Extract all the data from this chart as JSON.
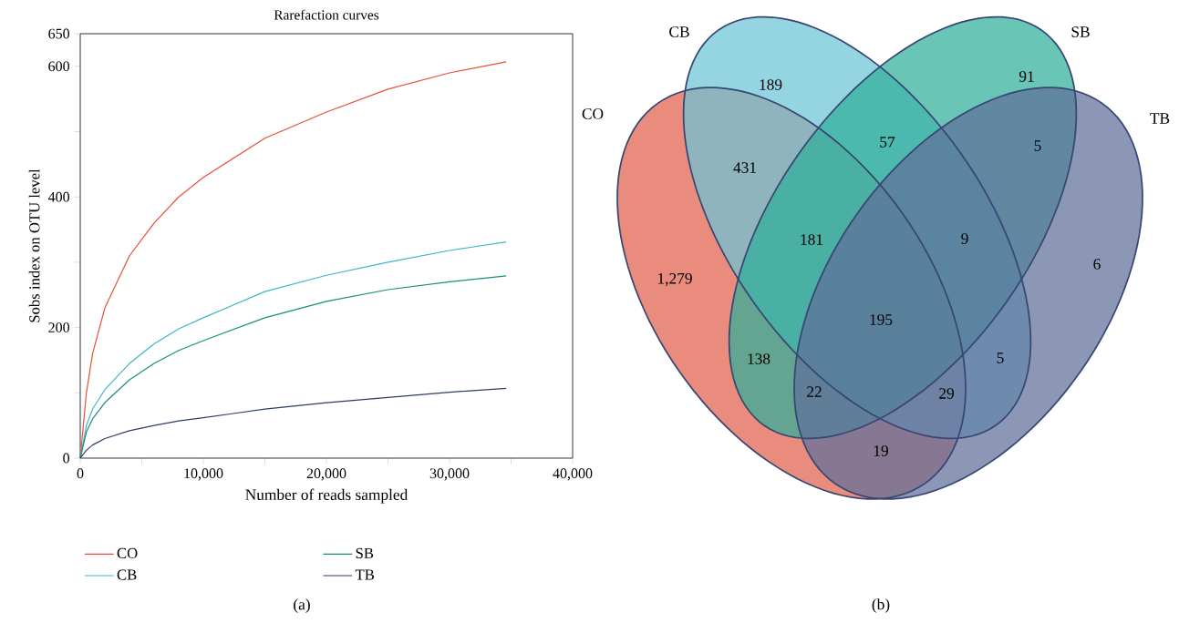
{
  "chart_data": [
    {
      "type": "line",
      "title": "Rarefaction curves",
      "xlabel": "Number of reads sampled",
      "ylabel": "Sobs index on OTU level",
      "x": [
        0,
        500,
        1000,
        2000,
        4000,
        6000,
        8000,
        10000,
        15000,
        20000,
        25000,
        30000,
        34600
      ],
      "series": [
        {
          "name": "CO",
          "color": "#e8503a",
          "values": [
            0,
            100,
            160,
            230,
            310,
            360,
            400,
            430,
            490,
            530,
            565,
            590,
            607
          ]
        },
        {
          "name": "CB",
          "color": "#3fb5c9",
          "values": [
            0,
            50,
            75,
            105,
            145,
            175,
            198,
            215,
            255,
            280,
            300,
            318,
            331
          ]
        },
        {
          "name": "SB",
          "color": "#15917a",
          "values": [
            0,
            40,
            60,
            85,
            120,
            145,
            165,
            180,
            215,
            240,
            258,
            270,
            279
          ]
        },
        {
          "name": "TB",
          "color": "#2f3d6b",
          "values": [
            0,
            12,
            20,
            30,
            42,
            50,
            57,
            62,
            75,
            85,
            93,
            101,
            107
          ]
        }
      ],
      "xlim": [
        0,
        40000
      ],
      "ylim": [
        0,
        650
      ],
      "xticks": [
        0,
        {
          "value": 5000,
          "label": null
        },
        {
          "value": 10000,
          "label": "10,000"
        },
        {
          "value": 15000,
          "label": null
        },
        {
          "value": 20000,
          "label": "20,000"
        },
        {
          "value": 25000,
          "label": null
        },
        {
          "value": 30000,
          "label": "30,000"
        },
        {
          "value": 35000,
          "label": null
        },
        {
          "value": 40000,
          "label": "40,000"
        }
      ],
      "yticks": [
        0,
        {
          "value": 100,
          "label": null
        },
        200,
        {
          "value": 300,
          "label": null
        },
        400,
        {
          "value": 500,
          "label": null
        },
        600,
        650
      ],
      "legend": "bottom",
      "marker": "none",
      "line_style": "solid",
      "annotations": [
        "(a)"
      ]
    },
    {
      "type": "other",
      "categories": [
        "CO",
        "CB",
        "SB",
        "TB"
      ],
      "colors": [
        "#e0604c",
        "#6cc3d5",
        "#2fae98",
        "#5f6f9a"
      ],
      "annotations": [
        "1,279",
        "189",
        "91",
        "6",
        "431",
        "57",
        "5",
        "181",
        "9",
        "195",
        "138",
        "22",
        "29",
        "5",
        "19",
        "(b)"
      ]
    }
  ]
}
